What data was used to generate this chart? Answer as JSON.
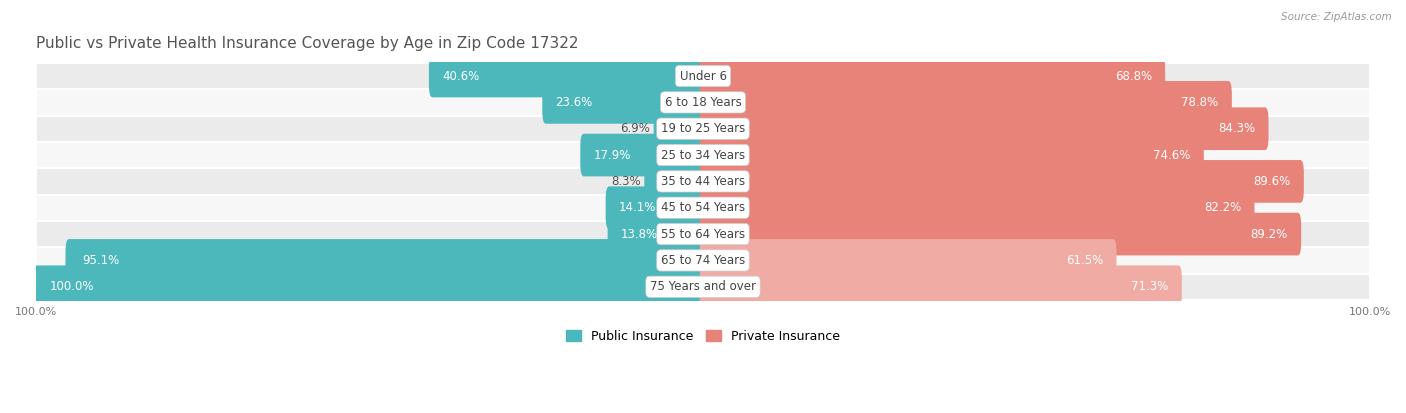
{
  "title": "Public vs Private Health Insurance Coverage by Age in Zip Code 17322",
  "source": "Source: ZipAtlas.com",
  "categories": [
    "Under 6",
    "6 to 18 Years",
    "19 to 25 Years",
    "25 to 34 Years",
    "35 to 44 Years",
    "45 to 54 Years",
    "55 to 64 Years",
    "65 to 74 Years",
    "75 Years and over"
  ],
  "public_values": [
    40.6,
    23.6,
    6.9,
    17.9,
    8.3,
    14.1,
    13.8,
    95.1,
    100.0
  ],
  "private_values": [
    68.8,
    78.8,
    84.3,
    74.6,
    89.6,
    82.2,
    89.2,
    61.5,
    71.3
  ],
  "public_color": "#4db8bc",
  "private_color": "#e8837a",
  "private_color_light": "#f0aba4",
  "row_bg_even": "#ebebeb",
  "row_bg_odd": "#f7f7f7",
  "title_fontsize": 11,
  "value_fontsize": 8.5,
  "category_fontsize": 8.5,
  "bar_height": 0.62,
  "legend_labels": [
    "Public Insurance",
    "Private Insurance"
  ],
  "legend_colors": [
    "#4db8bc",
    "#e8837a"
  ]
}
